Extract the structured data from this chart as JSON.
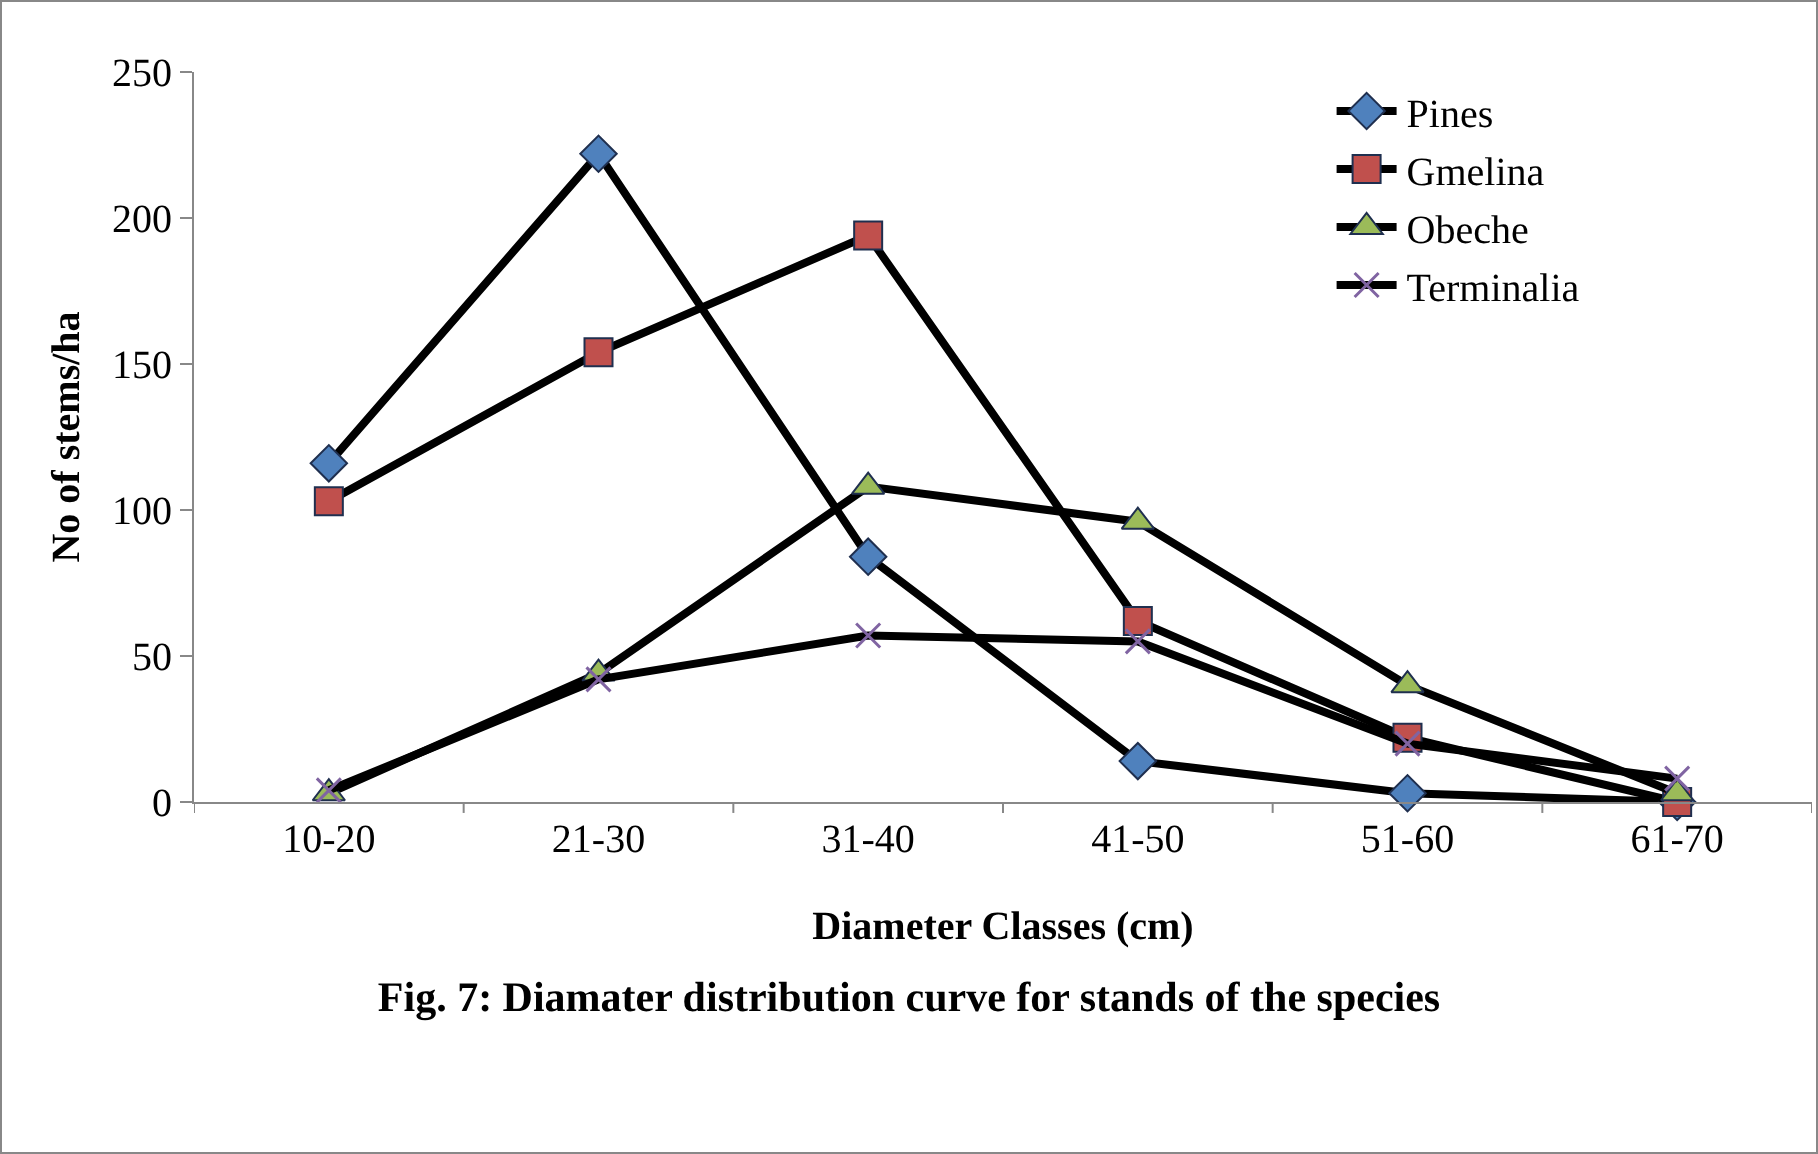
{
  "chart_data": {
    "type": "line",
    "title": "Fig. 7: Diamater distribution curve for stands of the species",
    "xlabel": "Diameter Classes (cm)",
    "ylabel": "No of stems/ha",
    "categories": [
      "10-20",
      "21-30",
      "31-40",
      "41-50",
      "51-60",
      "61-70"
    ],
    "series": [
      {
        "name": "Pines",
        "color": "#4f81bd",
        "marker": "diamond",
        "values": [
          116,
          222,
          84,
          14,
          3,
          0
        ]
      },
      {
        "name": "Gmelina",
        "color": "#c0504d",
        "marker": "square",
        "values": [
          103,
          154,
          194,
          62,
          22,
          0
        ]
      },
      {
        "name": "Obeche",
        "color": "#9bbb59",
        "marker": "triangle",
        "values": [
          3,
          44,
          108,
          96,
          40,
          3
        ]
      },
      {
        "name": "Terminalia",
        "color": "#8064a2",
        "marker": "cross",
        "values": [
          4,
          42,
          57,
          55,
          20,
          8
        ]
      }
    ],
    "ylim": [
      0,
      250
    ],
    "yticks": [
      0,
      50,
      100,
      150,
      200,
      250
    ],
    "grid": false,
    "legend": "top right",
    "line_style": "solid"
  }
}
